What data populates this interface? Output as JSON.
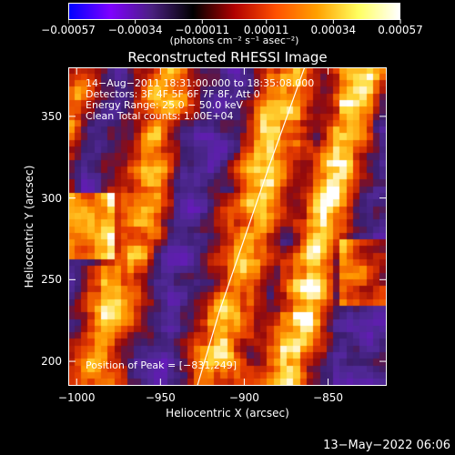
{
  "chart_data": {
    "type": "heatmap",
    "title": "Reconstructed RHESSI Image",
    "xlabel": "Heliocentric X (arcsec)",
    "ylabel": "Heliocentric Y (arcsec)",
    "xlim": [
      -1005,
      -815
    ],
    "ylim": [
      185,
      380
    ],
    "x_ticks": [
      -1000,
      -950,
      -900,
      -850
    ],
    "x_tick_labels": [
      "−1000",
      "−950",
      "−900",
      "−850"
    ],
    "y_ticks": [
      200,
      250,
      300,
      350
    ],
    "y_tick_labels": [
      "200",
      "250",
      "300",
      "350"
    ],
    "colorbar": {
      "range": [
        -0.00057,
        0.00057
      ],
      "ticks": [
        -0.00057,
        -0.00034,
        -0.00011,
        0.00011,
        0.00034,
        0.00057
      ],
      "tick_labels": [
        "−0.00057",
        "−0.00034",
        "−0.00011",
        "0.00011",
        "0.00034",
        "0.00057"
      ],
      "units_label": "(photons cm⁻² s⁻¹ asec⁻²)",
      "colors": [
        "#0000ff",
        "#7f00ff",
        "#4a2080",
        "#000000",
        "#b00000",
        "#ff5000",
        "#ffa000",
        "#ffff60",
        "#ffffff"
      ]
    },
    "annotations": [
      "14−Aug−2011 18:31:00.000 to 18:35:08.000",
      "Detectors: 3F 4F 5F 6F 7F 8F, Att 0",
      "Energy Range: 25.0 − 50.0 keV",
      "Clean    Total counts: 1.00E+04"
    ],
    "peak_label": "Position of Peak = [−831,249]",
    "limb_curve": [
      [
        -928,
        185
      ],
      [
        -915,
        230
      ],
      [
        -900,
        275
      ],
      [
        -885,
        320
      ],
      [
        -871,
        360
      ],
      [
        -864,
        380
      ]
    ],
    "colors_of_note": {
      "background": "#000000",
      "limb": "#ffffff",
      "dominant_low": "#4a2080",
      "bright": "#ffd000"
    }
  },
  "footer_timestamp": "13−May−2022 06:06"
}
